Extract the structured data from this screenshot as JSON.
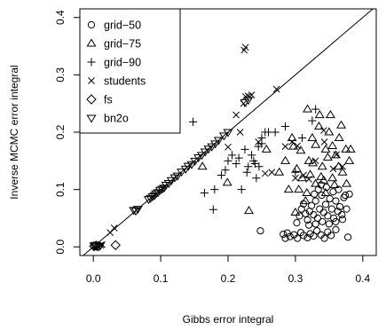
{
  "chart_data": {
    "type": "scatter",
    "title": "",
    "xlabel": "Gibbs error integral",
    "ylabel": "Inverse MCMC error integral",
    "xlim": [
      -0.02,
      0.42
    ],
    "ylim": [
      -0.015,
      0.415
    ],
    "x_ticks": [
      "0.0",
      "0.1",
      "0.2",
      "0.3",
      "0.4"
    ],
    "y_ticks": [
      "0.0",
      "0.1",
      "0.2",
      "0.3",
      "0.4"
    ],
    "grid": false,
    "legend_position": "top-left",
    "reference_line": "y = x",
    "series": [
      {
        "name": "grid−50",
        "marker": "circle",
        "points": [
          [
            0.248,
            0.028
          ],
          [
            0.282,
            0.022
          ],
          [
            0.285,
            0.015
          ],
          [
            0.288,
            0.024
          ],
          [
            0.292,
            0.018
          ],
          [
            0.298,
            0.021
          ],
          [
            0.303,
            0.015
          ],
          [
            0.308,
            0.025
          ],
          [
            0.312,
            0.02
          ],
          [
            0.318,
            0.016
          ],
          [
            0.322,
            0.023
          ],
          [
            0.327,
            0.019
          ],
          [
            0.332,
            0.028
          ],
          [
            0.338,
            0.021
          ],
          [
            0.343,
            0.015
          ],
          [
            0.348,
            0.026
          ],
          [
            0.353,
            0.02
          ],
          [
            0.36,
            0.03
          ],
          [
            0.378,
            0.017
          ],
          [
            0.302,
            0.042
          ],
          [
            0.306,
            0.054
          ],
          [
            0.309,
            0.066
          ],
          [
            0.312,
            0.075
          ],
          [
            0.315,
            0.058
          ],
          [
            0.318,
            0.047
          ],
          [
            0.321,
            0.062
          ],
          [
            0.324,
            0.072
          ],
          [
            0.327,
            0.056
          ],
          [
            0.33,
            0.08
          ],
          [
            0.333,
            0.05
          ],
          [
            0.336,
            0.066
          ],
          [
            0.339,
            0.09
          ],
          [
            0.342,
            0.06
          ],
          [
            0.345,
            0.074
          ],
          [
            0.348,
            0.054
          ],
          [
            0.351,
            0.084
          ],
          [
            0.354,
            0.066
          ],
          [
            0.357,
            0.05
          ],
          [
            0.36,
            0.08
          ],
          [
            0.363,
            0.062
          ],
          [
            0.366,
            0.07
          ],
          [
            0.369,
            0.056
          ],
          [
            0.372,
            0.086
          ],
          [
            0.376,
            0.066
          ],
          [
            0.32,
            0.038
          ],
          [
            0.33,
            0.04
          ],
          [
            0.34,
            0.044
          ],
          [
            0.35,
            0.04
          ],
          [
            0.36,
            0.044
          ],
          [
            0.37,
            0.048
          ],
          [
            0.334,
            0.1
          ],
          [
            0.346,
            0.104
          ],
          [
            0.356,
            0.096
          ],
          [
            0.364,
            0.1
          ],
          [
            0.374,
            0.09
          ],
          [
            0.38,
            0.092
          ],
          [
            0.328,
            0.092
          ],
          [
            0.338,
            0.108
          ]
        ]
      },
      {
        "name": "grid−75",
        "marker": "triangle-up",
        "points": [
          [
            0.3,
            0.06
          ],
          [
            0.305,
            0.1
          ],
          [
            0.31,
            0.12
          ],
          [
            0.315,
            0.08
          ],
          [
            0.32,
            0.15
          ],
          [
            0.325,
            0.19
          ],
          [
            0.33,
            0.11
          ],
          [
            0.335,
            0.21
          ],
          [
            0.34,
            0.14
          ],
          [
            0.345,
            0.17
          ],
          [
            0.35,
            0.2
          ],
          [
            0.355,
            0.12
          ],
          [
            0.36,
            0.16
          ],
          [
            0.365,
            0.19
          ],
          [
            0.37,
            0.13
          ],
          [
            0.375,
            0.17
          ],
          [
            0.38,
            0.15
          ],
          [
            0.318,
            0.24
          ],
          [
            0.336,
            0.23
          ],
          [
            0.352,
            0.23
          ],
          [
            0.297,
            0.175
          ],
          [
            0.302,
            0.136
          ],
          [
            0.322,
            0.126
          ],
          [
            0.342,
            0.116
          ],
          [
            0.358,
            0.108
          ],
          [
            0.376,
            0.11
          ],
          [
            0.382,
            0.17
          ],
          [
            0.295,
            0.19
          ],
          [
            0.231,
            0.063
          ],
          [
            0.199,
            0.112
          ],
          [
            0.162,
            0.14
          ],
          [
            0.257,
            0.17
          ],
          [
            0.285,
            0.15
          ],
          [
            0.29,
            0.1
          ],
          [
            0.276,
            0.13
          ],
          [
            0.308,
            0.168
          ],
          [
            0.33,
            0.178
          ],
          [
            0.348,
            0.156
          ],
          [
            0.364,
            0.14
          ],
          [
            0.317,
            0.094
          ],
          [
            0.326,
            0.146
          ],
          [
            0.338,
            0.122
          ],
          [
            0.355,
            0.176
          ],
          [
            0.368,
            0.212
          ],
          [
            0.345,
            0.094
          ]
        ]
      },
      {
        "name": "grid−90",
        "marker": "plus",
        "points": [
          [
            0.148,
            0.218
          ],
          [
            0.165,
            0.094
          ],
          [
            0.178,
            0.065
          ],
          [
            0.18,
            0.1
          ],
          [
            0.19,
            0.125
          ],
          [
            0.196,
            0.134
          ],
          [
            0.2,
            0.15
          ],
          [
            0.206,
            0.16
          ],
          [
            0.212,
            0.145
          ],
          [
            0.216,
            0.155
          ],
          [
            0.22,
            0.1
          ],
          [
            0.225,
            0.17
          ],
          [
            0.23,
            0.14
          ],
          [
            0.235,
            0.16
          ],
          [
            0.24,
            0.145
          ],
          [
            0.245,
            0.175
          ],
          [
            0.25,
            0.19
          ],
          [
            0.255,
            0.2
          ],
          [
            0.26,
            0.2
          ],
          [
            0.228,
            0.13
          ],
          [
            0.238,
            0.15
          ],
          [
            0.246,
            0.14
          ],
          [
            0.285,
            0.21
          ],
          [
            0.3,
            0.13
          ],
          [
            0.31,
            0.19
          ],
          [
            0.325,
            0.22
          ],
          [
            0.33,
            0.24
          ],
          [
            0.25,
            0.18
          ],
          [
            0.27,
            0.2
          ],
          [
            0.242,
            0.12
          ]
        ]
      },
      {
        "name": "students",
        "marker": "x",
        "points": [
          [
            0.007,
            0.002
          ],
          [
            0.011,
            0.003
          ],
          [
            0.013,
            0.004
          ],
          [
            0.025,
            0.025
          ],
          [
            0.031,
            0.033
          ],
          [
            0.2,
            0.174
          ],
          [
            0.212,
            0.23
          ],
          [
            0.223,
            0.25
          ],
          [
            0.226,
            0.262
          ],
          [
            0.224,
            0.343
          ],
          [
            0.226,
            0.348
          ],
          [
            0.23,
            0.263
          ],
          [
            0.235,
            0.265
          ],
          [
            0.245,
            0.183
          ],
          [
            0.255,
            0.128
          ],
          [
            0.272,
            0.275
          ],
          [
            0.285,
            0.175
          ],
          [
            0.295,
            0.183
          ],
          [
            0.303,
            0.176
          ],
          [
            0.312,
            0.125
          ],
          [
            0.32,
            0.118
          ],
          [
            0.33,
            0.15
          ],
          [
            0.342,
            0.203
          ],
          [
            0.356,
            0.136
          ],
          [
            0.361,
            0.161
          ],
          [
            0.37,
            0.14
          ],
          [
            0.343,
            0.183
          ],
          [
            0.3,
            0.12
          ],
          [
            0.265,
            0.13
          ],
          [
            0.218,
            0.2
          ]
        ]
      },
      {
        "name": "fs",
        "marker": "diamond",
        "points": [
          [
            0.001,
            0.001
          ],
          [
            0.004,
            0.002
          ],
          [
            0.007,
            0.001
          ],
          [
            0.033,
            0.003
          ]
        ]
      },
      {
        "name": "bn2o",
        "marker": "triangle-down",
        "points": [
          [
            0.001,
            0.002
          ],
          [
            0.003,
            0.003
          ],
          [
            0.006,
            0.002
          ],
          [
            0.01,
            0.002
          ],
          [
            0.06,
            0.064
          ],
          [
            0.063,
            0.063
          ],
          [
            0.066,
            0.066
          ],
          [
            0.082,
            0.083
          ],
          [
            0.085,
            0.085
          ],
          [
            0.088,
            0.088
          ],
          [
            0.091,
            0.09
          ],
          [
            0.093,
            0.093
          ],
          [
            0.096,
            0.095
          ],
          [
            0.099,
            0.099
          ],
          [
            0.102,
            0.101
          ],
          [
            0.105,
            0.103
          ],
          [
            0.108,
            0.108
          ],
          [
            0.112,
            0.111
          ],
          [
            0.116,
            0.116
          ],
          [
            0.121,
            0.121
          ],
          [
            0.125,
            0.124
          ],
          [
            0.131,
            0.131
          ],
          [
            0.137,
            0.136
          ],
          [
            0.141,
            0.141
          ],
          [
            0.146,
            0.144
          ],
          [
            0.151,
            0.15
          ],
          [
            0.156,
            0.156
          ],
          [
            0.161,
            0.16
          ],
          [
            0.166,
            0.166
          ],
          [
            0.171,
            0.171
          ],
          [
            0.176,
            0.175
          ],
          [
            0.181,
            0.18
          ],
          [
            0.186,
            0.186
          ],
          [
            0.194,
            0.194
          ],
          [
            0.2,
            0.2
          ],
          [
            0.225,
            0.252
          ],
          [
            0.23,
            0.256
          ]
        ]
      }
    ]
  }
}
